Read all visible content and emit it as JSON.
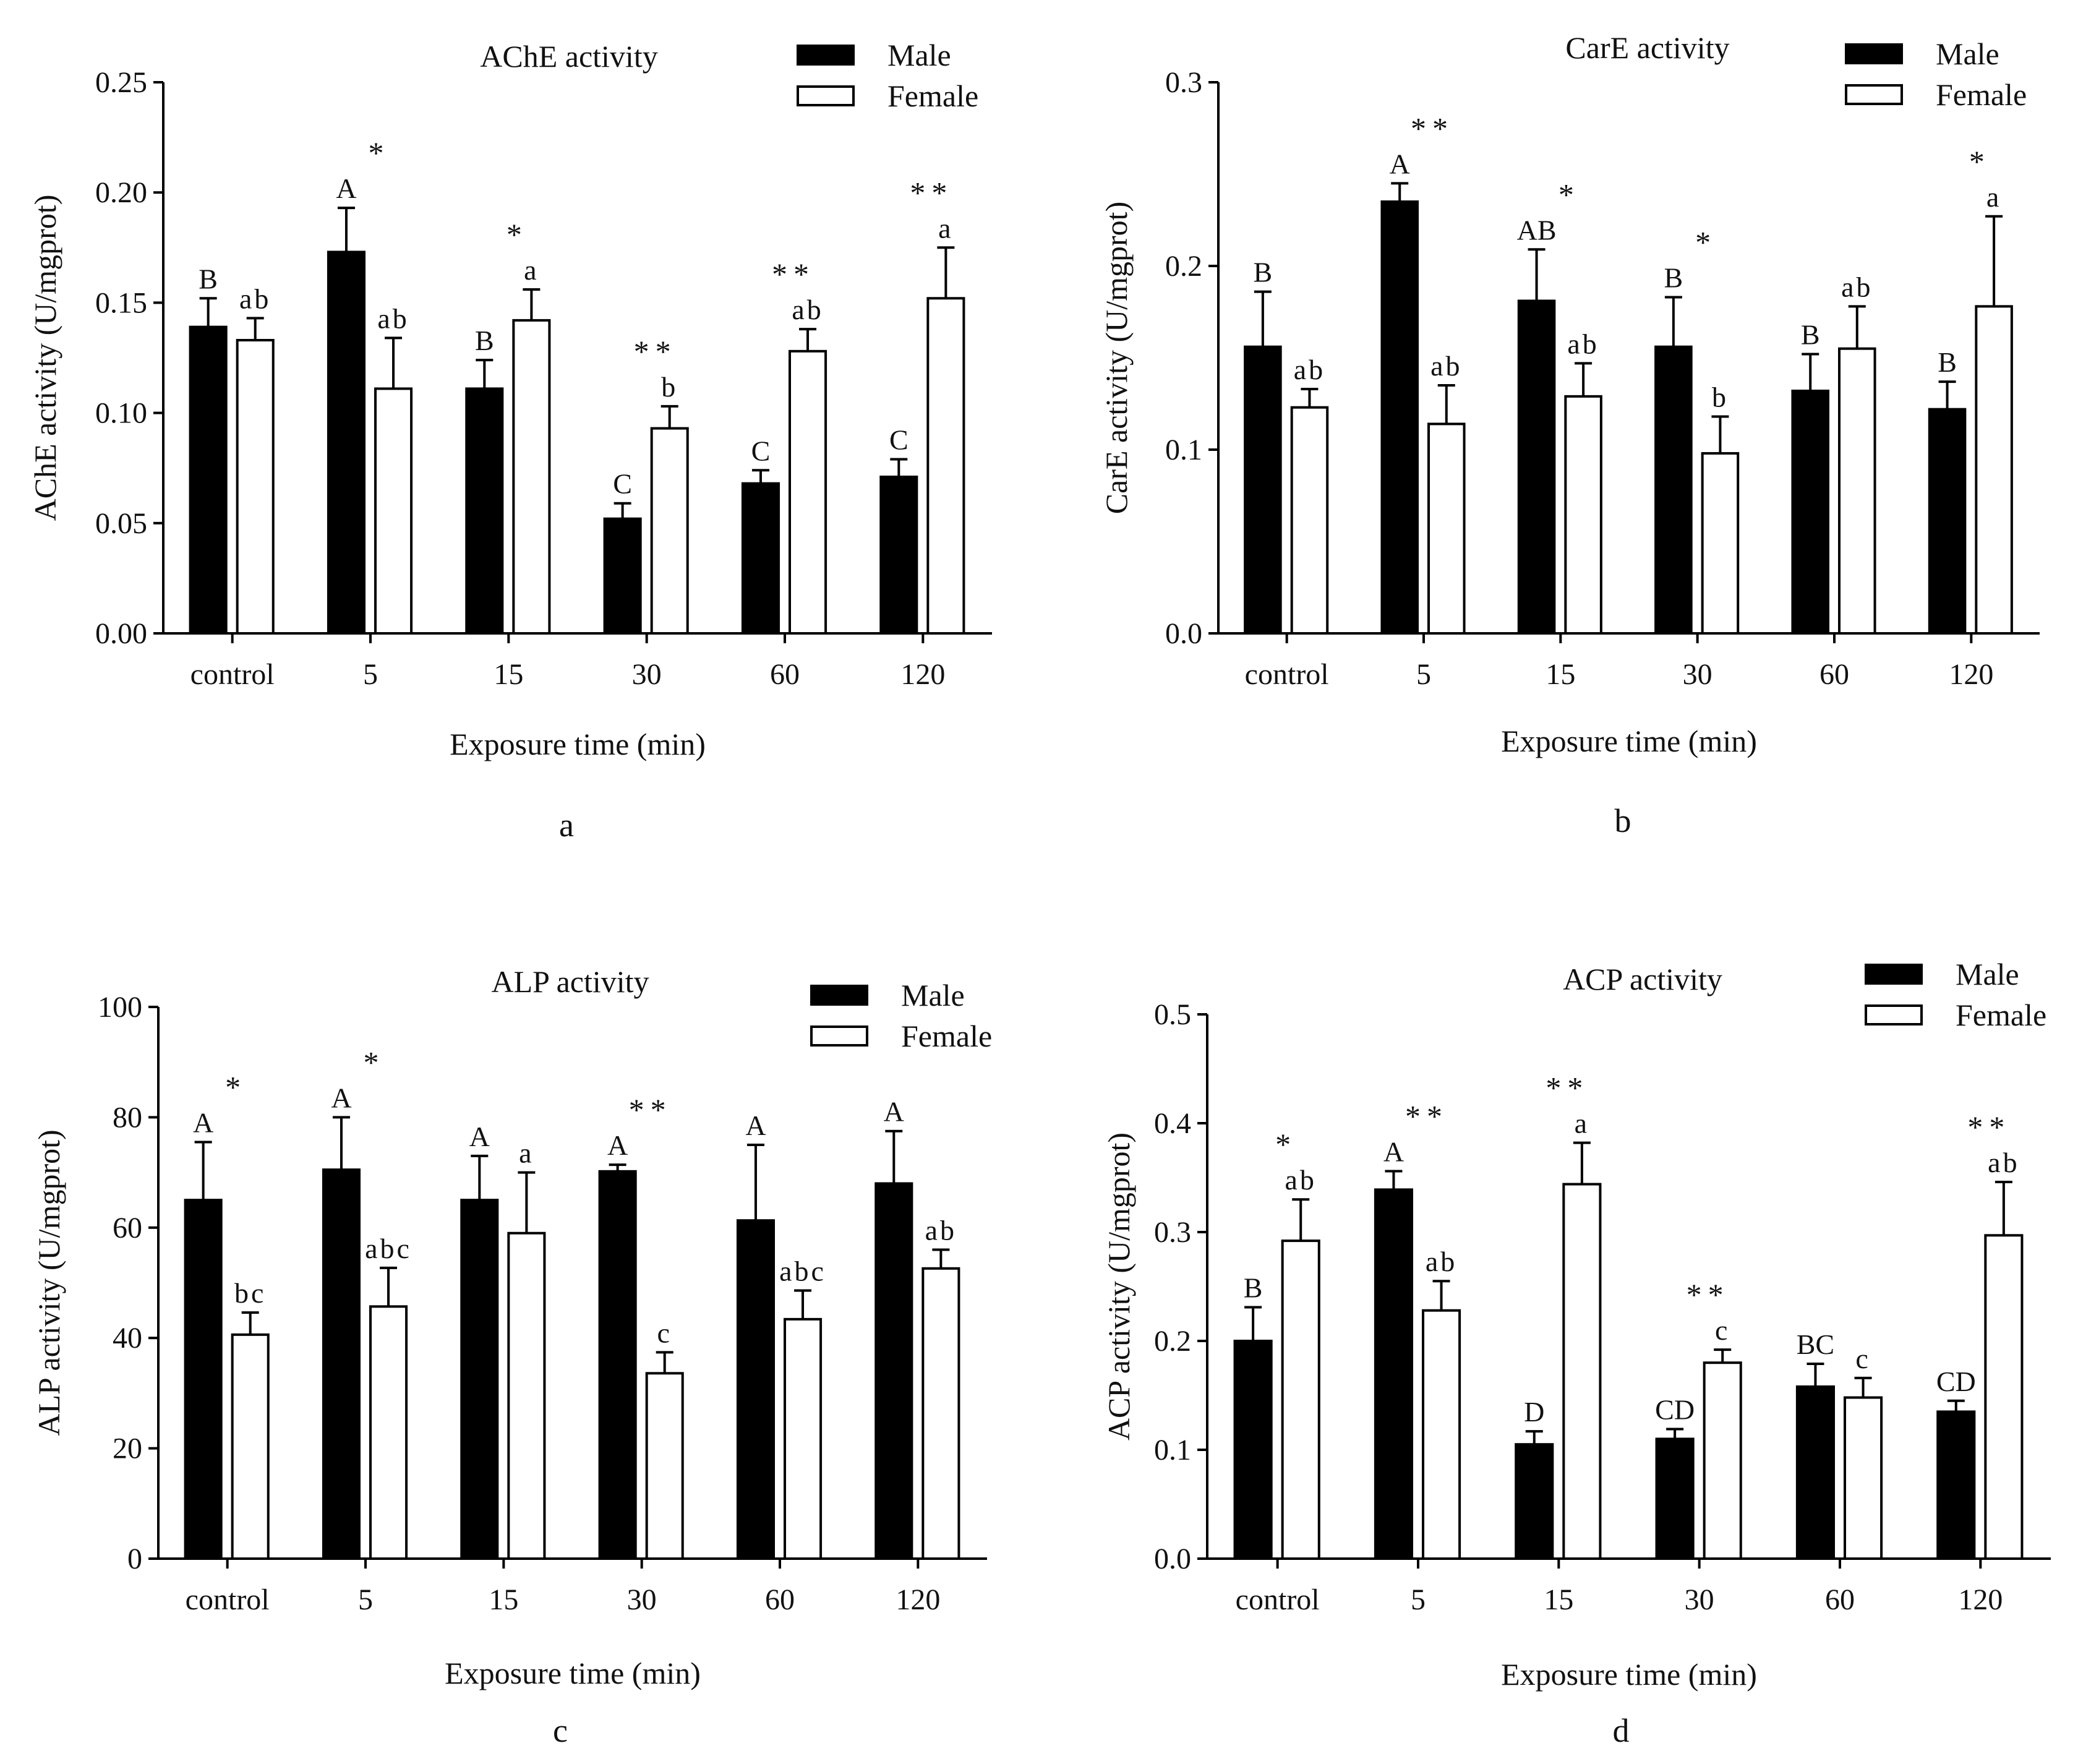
{
  "chart_data": [
    {
      "type": "bar",
      "panel_label": "a",
      "title": "AChE activity",
      "xlabel": "Exposure time (min)",
      "ylabel": "AChE activity  (U/mgprot)",
      "categories": [
        "control",
        "5",
        "15",
        "30",
        "60",
        "120"
      ],
      "ylim": [
        0,
        0.25
      ],
      "yticks": [
        0,
        0.05,
        0.1,
        0.15,
        0.2,
        0.25
      ],
      "ytick_labels": [
        "0.00",
        "0.05",
        "0.10",
        "0.15",
        "0.20",
        "0.25"
      ],
      "legend": {
        "position": "top-right",
        "entries": [
          "Male",
          "Female"
        ]
      },
      "series": [
        {
          "name": "Male",
          "color": "#000000",
          "values": [
            0.139,
            0.173,
            0.111,
            0.052,
            0.068,
            0.071
          ],
          "errors": [
            0.013,
            0.02,
            0.013,
            0.007,
            0.006,
            0.008
          ],
          "letters": [
            "B",
            "A",
            "B",
            "C",
            "C",
            "C"
          ]
        },
        {
          "name": "Female",
          "color": "#ffffff",
          "values": [
            0.133,
            0.111,
            0.142,
            0.093,
            0.128,
            0.152
          ],
          "errors": [
            0.01,
            0.023,
            0.014,
            0.01,
            0.01,
            0.023
          ],
          "letters": [
            "ab",
            "ab",
            "a",
            "b",
            "ab",
            "a"
          ]
        }
      ],
      "significance": [
        "",
        "*",
        "*",
        "**",
        "**",
        "**"
      ]
    },
    {
      "type": "bar",
      "panel_label": "b",
      "title": "CarE activity",
      "xlabel": "Exposure time (min)",
      "ylabel": "CarE activity (U/mgprot)",
      "categories": [
        "control",
        "5",
        "15",
        "30",
        "60",
        "120"
      ],
      "ylim": [
        0,
        0.3
      ],
      "yticks": [
        0,
        0.1,
        0.2,
        0.3
      ],
      "ytick_labels": [
        "0.0",
        "0.1",
        "0.2",
        "0.3"
      ],
      "legend": {
        "position": "top-right",
        "entries": [
          "Male",
          "Female"
        ]
      },
      "series": [
        {
          "name": "Male",
          "color": "#000000",
          "values": [
            0.156,
            0.235,
            0.181,
            0.156,
            0.132,
            0.122
          ],
          "errors": [
            0.03,
            0.01,
            0.028,
            0.027,
            0.02,
            0.015
          ],
          "letters": [
            "B",
            "A",
            "AB",
            "B",
            "B",
            "B"
          ]
        },
        {
          "name": "Female",
          "color": "#ffffff",
          "values": [
            0.123,
            0.114,
            0.129,
            0.098,
            0.155,
            0.178
          ],
          "errors": [
            0.01,
            0.021,
            0.018,
            0.02,
            0.023,
            0.049
          ],
          "letters": [
            "ab",
            "ab",
            "ab",
            "b",
            "ab",
            "a"
          ]
        }
      ],
      "significance": [
        "",
        "**",
        "*",
        "*",
        "",
        "*"
      ]
    },
    {
      "type": "bar",
      "panel_label": "c",
      "title": "ALP activity",
      "xlabel": "Exposure time (min)",
      "ylabel": "ALP activity (U/mgprot)",
      "categories": [
        "control",
        "5",
        "15",
        "30",
        "60",
        "120"
      ],
      "ylim": [
        0,
        100
      ],
      "yticks": [
        0,
        20,
        40,
        60,
        80,
        100
      ],
      "ytick_labels": [
        "0",
        "20",
        "40",
        "60",
        "80",
        "100"
      ],
      "legend": {
        "position": "top-right",
        "entries": [
          "Male",
          "Female"
        ]
      },
      "series": [
        {
          "name": "Male",
          "color": "#000000",
          "values": [
            65,
            70.5,
            65,
            70.2,
            61.3,
            68
          ],
          "errors": [
            10.5,
            9.5,
            8,
            1.2,
            13.7,
            9.5
          ],
          "letters": [
            "A",
            "A",
            "A",
            "A",
            "A",
            "A"
          ]
        },
        {
          "name": "Female",
          "color": "#ffffff",
          "values": [
            40.6,
            45.7,
            59,
            33.6,
            43.4,
            52.6
          ],
          "errors": [
            4,
            7,
            11,
            3.8,
            5.2,
            3.4
          ],
          "letters": [
            "bc",
            "abc",
            "a",
            "c",
            "abc",
            "ab"
          ]
        }
      ],
      "significance": [
        "*",
        "*",
        "",
        "**",
        "",
        ""
      ]
    },
    {
      "type": "bar",
      "panel_label": "d",
      "title": "ACP activity",
      "xlabel": "Exposure time (min)",
      "ylabel": "ACP activity (U/mgprot)",
      "categories": [
        "control",
        "5",
        "15",
        "30",
        "60",
        "120"
      ],
      "ylim": [
        0,
        0.5
      ],
      "yticks": [
        0,
        0.1,
        0.2,
        0.3,
        0.4,
        0.5
      ],
      "ytick_labels": [
        "0.0",
        "0.1",
        "0.2",
        "0.3",
        "0.4",
        "0.5"
      ],
      "legend": {
        "position": "top-right",
        "entries": [
          "Male",
          "Female"
        ]
      },
      "series": [
        {
          "name": "Male",
          "color": "#000000",
          "values": [
            0.2,
            0.339,
            0.105,
            0.11,
            0.158,
            0.135
          ],
          "errors": [
            0.031,
            0.017,
            0.012,
            0.009,
            0.021,
            0.01
          ],
          "letters": [
            "B",
            "A",
            "D",
            "CD",
            "BC",
            "CD"
          ]
        },
        {
          "name": "Female",
          "color": "#ffffff",
          "values": [
            0.292,
            0.228,
            0.344,
            0.18,
            0.148,
            0.297
          ],
          "errors": [
            0.038,
            0.027,
            0.038,
            0.012,
            0.018,
            0.049
          ],
          "letters": [
            "ab",
            "ab",
            "a",
            "c",
            "c",
            "ab"
          ]
        }
      ],
      "significance": [
        "*",
        "**",
        "**",
        "**",
        "",
        "**"
      ]
    }
  ]
}
